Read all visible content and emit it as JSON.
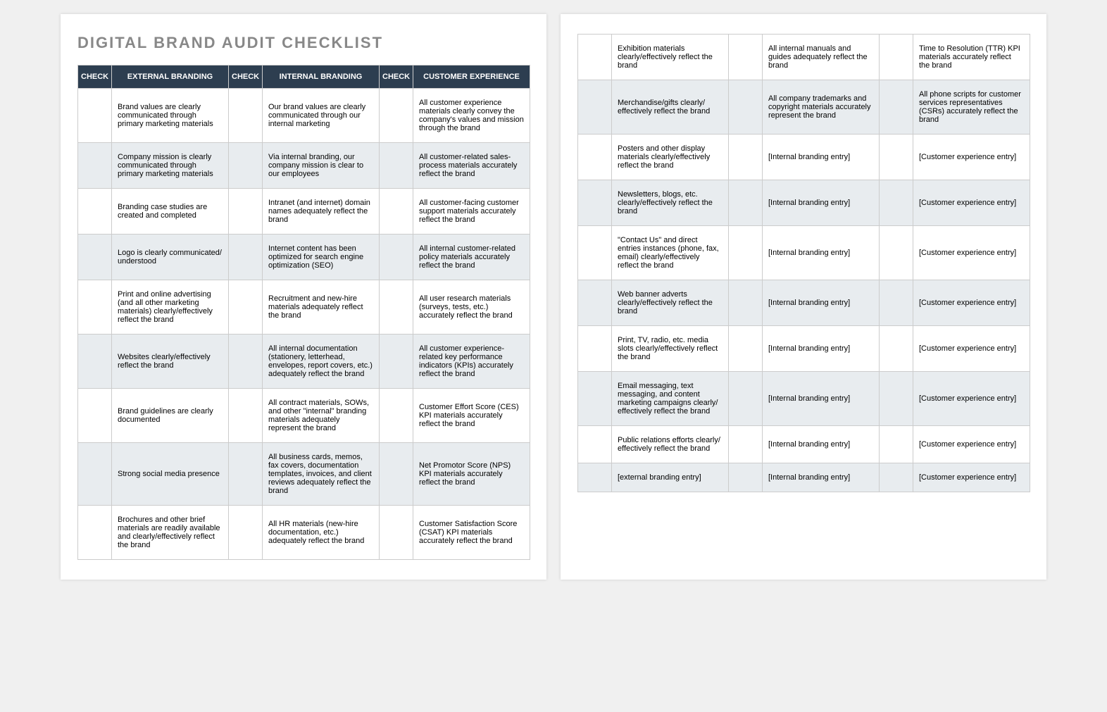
{
  "title": "DIGITAL BRAND AUDIT CHECKLIST",
  "headers": {
    "check": "CHECK",
    "external": "EXTERNAL BRANDING",
    "internal": "INTERNAL BRANDING",
    "customer": "CUSTOMER EXPERIENCE"
  },
  "page1_rows": [
    {
      "ext": "Brand values are clearly communicated through primary marketing materials",
      "int": "Our brand values are clearly communicated through our internal marketing",
      "cust": "All customer experience materials clearly convey the company's values and mission through the brand"
    },
    {
      "ext": "Company mission is clearly communicated through primary marketing materials",
      "int": "Via internal branding, our company mission is clear to our employees",
      "cust": "All customer-related sales-process materials accurately reflect the brand"
    },
    {
      "ext": "Branding case studies are created and completed",
      "int": "Intranet (and internet) domain names adequately reflect the brand",
      "cust": "All customer-facing customer support materials accurately reflect the brand"
    },
    {
      "ext": "Logo is clearly communicated/ understood",
      "int": "Internet content has been optimized for search engine optimization (SEO)",
      "cust": "All internal customer-related policy materials accurately reflect the brand"
    },
    {
      "ext": "Print and online advertising (and all other marketing materials) clearly/effectively reflect the brand",
      "int": "Recruitment and new-hire materials adequately reflect the brand",
      "cust": "All user research materials (surveys, tests, etc.) accurately reflect the brand"
    },
    {
      "ext": "Websites clearly/effectively reflect the brand",
      "int": "All internal documentation (stationery, letterhead, envelopes, report covers, etc.) adequately reflect the brand",
      "cust": "All customer experience-related key performance indicators (KPIs) accurately reflect the brand"
    },
    {
      "ext": "Brand guidelines are clearly documented",
      "int": "All contract materials, SOWs, and other \"internal\" branding materials adequately represent the brand",
      "cust": "Customer Effort Score (CES) KPI materials accurately reflect the brand"
    },
    {
      "ext": "Strong social media presence",
      "int": "All business cards, memos, fax covers, documentation templates, invoices, and client reviews adequately reflect the brand",
      "cust": "Net Promotor Score (NPS) KPI materials accurately reflect the brand"
    },
    {
      "ext": "Brochures and other brief materials are readily available and clearly/effectively reflect the brand",
      "int": "All HR materials (new-hire documentation, etc.) adequately reflect the brand",
      "cust": "Customer Satisfaction Score (CSAT) KPI materials accurately reflect the brand"
    }
  ],
  "page2_rows": [
    {
      "ext": "Exhibition materials clearly/effectively reflect the brand",
      "int": "All internal manuals and guides adequately reflect the brand",
      "cust": "Time to Resolution (TTR) KPI materials accurately reflect the brand"
    },
    {
      "ext": "Merchandise/gifts clearly/ effectively reflect the brand",
      "int": "All company trademarks and copyright materials accurately represent the brand",
      "cust": "All phone scripts for customer services representatives (CSRs) accurately reflect the brand"
    },
    {
      "ext": "Posters and other display materials clearly/effectively reflect the brand",
      "int": "[Internal branding entry]",
      "cust": "[Customer experience entry]"
    },
    {
      "ext": "Newsletters, blogs, etc. clearly/effectively reflect the brand",
      "int": "[Internal branding entry]",
      "cust": "[Customer experience entry]"
    },
    {
      "ext": "\"Contact Us\" and direct entries instances (phone, fax, email) clearly/effectively reflect the brand",
      "int": "[Internal branding entry]",
      "cust": "[Customer experience entry]"
    },
    {
      "ext": "Web banner adverts clearly/effectively reflect the brand",
      "int": "[Internal branding entry]",
      "cust": "[Customer experience entry]"
    },
    {
      "ext": "Print, TV, radio, etc. media slots clearly/effectively reflect the brand",
      "int": "[Internal branding entry]",
      "cust": "[Customer experience entry]"
    },
    {
      "ext": "Email messaging, text messaging, and content marketing campaigns clearly/ effectively reflect the brand",
      "int": "[Internal branding entry]",
      "cust": "[Customer experience entry]"
    },
    {
      "ext": "Public relations efforts clearly/ effectively reflect the brand",
      "int": "[Internal branding entry]",
      "cust": "[Customer experience entry]"
    },
    {
      "ext": "[external branding entry]",
      "int": "[Internal branding entry]",
      "cust": "[Customer experience entry]"
    }
  ]
}
